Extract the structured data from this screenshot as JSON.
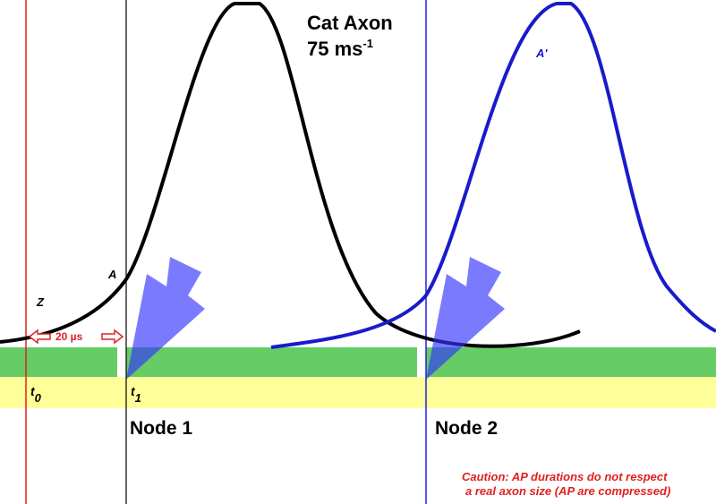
{
  "title": {
    "line1": "Cat Axon",
    "speed": "75 ms",
    "speed_sup": "-1"
  },
  "curve_labels": {
    "a": "A",
    "a_prime": "A'",
    "z": "Z"
  },
  "interval": "20 µs",
  "times": [
    {
      "base": "t",
      "sub": "0"
    },
    {
      "base": "t",
      "sub": "1"
    }
  ],
  "nodes": [
    "Node 1",
    "Node 2"
  ],
  "caution": [
    "Caution: AP durations do not respect",
    "a real axon size (AP are compressed)"
  ]
}
